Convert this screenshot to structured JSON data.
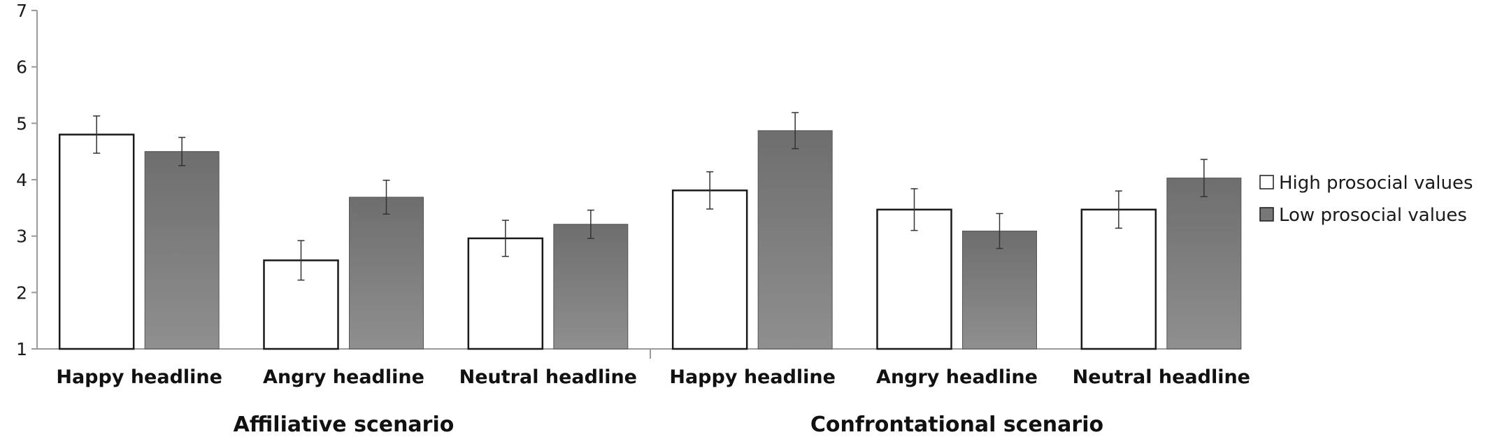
{
  "chart_data": {
    "type": "bar",
    "ylim": [
      1,
      7
    ],
    "yticks": [
      1,
      2,
      3,
      4,
      5,
      6,
      7
    ],
    "grid": false,
    "legend_placement": "right",
    "groups": [
      {
        "label": "Affiliative scenario",
        "categories": [
          "Happy headline",
          "Angry headline",
          "Neutral headline"
        ]
      },
      {
        "label": "Confrontational scenario",
        "categories": [
          "Happy headline",
          "Angry headline",
          "Neutral headline"
        ]
      }
    ],
    "series": [
      {
        "name": "High prosocial values",
        "color": "#ffffff",
        "values": [
          4.8,
          2.57,
          2.96,
          3.81,
          3.47,
          3.47
        ],
        "errors": [
          0.33,
          0.35,
          0.32,
          0.33,
          0.37,
          0.33
        ]
      },
      {
        "name": "Low prosocial values",
        "color": "#808080",
        "values": [
          4.5,
          3.69,
          3.21,
          4.87,
          3.09,
          4.03
        ],
        "errors": [
          0.25,
          0.3,
          0.25,
          0.32,
          0.31,
          0.33
        ]
      }
    ]
  }
}
